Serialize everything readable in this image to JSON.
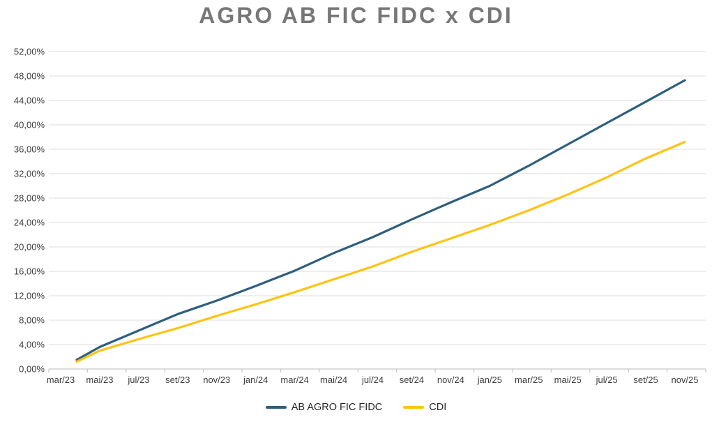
{
  "chart_data": {
    "type": "line",
    "title": "AGRO AB FIC FIDC x CDI",
    "title_color": "#777777",
    "categories": [
      "mar/23",
      "mai/23",
      "jul/23",
      "set/23",
      "nov/23",
      "jan/24",
      "mar/24",
      "mai/24",
      "jul/24",
      "set/24",
      "nov/24",
      "jan/25",
      "mar/25",
      "mai/25",
      "jul/25",
      "set/25",
      "nov/25"
    ],
    "series": [
      {
        "name": "AB AGRO FIC FIDC",
        "color": "#2E5F7E",
        "values": [
          1.5,
          3.6,
          6.3,
          9.0,
          11.2,
          13.6,
          16.1,
          19.0,
          21.6,
          24.5,
          27.3,
          30.0,
          33.3,
          36.8,
          40.3,
          43.8,
          47.3
        ]
      },
      {
        "name": "CDI",
        "color": "#FFC313",
        "values": [
          1.2,
          3.0,
          4.9,
          6.7,
          8.7,
          10.6,
          12.6,
          14.7,
          16.8,
          19.2,
          21.4,
          23.6,
          26.0,
          28.6,
          31.4,
          34.5,
          37.2
        ]
      }
    ],
    "y_tick_labels": [
      "0,00%",
      "4,00%",
      "8,00%",
      "12,00%",
      "16,00%",
      "20,00%",
      "24,00%",
      "28,00%",
      "32,00%",
      "36,00%",
      "40,00%",
      "44,00%",
      "48,00%",
      "52,00%"
    ],
    "ylim": [
      0,
      52
    ],
    "y_step": 4,
    "xlabel": "",
    "ylabel": "",
    "grid": true,
    "legend_position": "bottom",
    "axis_text_color": "#3D3D3D",
    "gridline_color": "#E4E4E4",
    "axis_line_color": "#C6C6C6",
    "background_color": "#FFFFFF"
  }
}
